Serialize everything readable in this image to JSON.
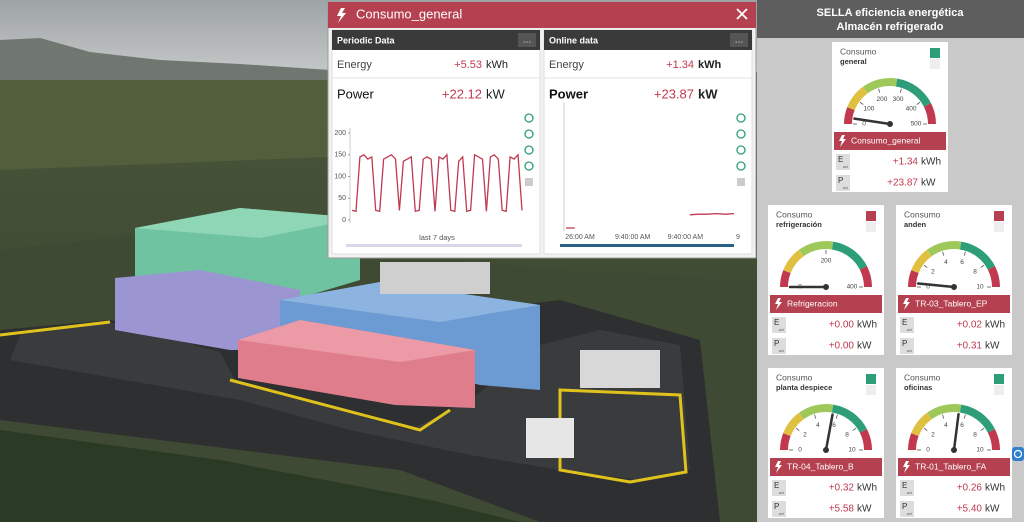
{
  "popup": {
    "title": "Consumo_general",
    "panels": [
      {
        "header": "Periodic Data",
        "energy_label": "Energy",
        "energy_value": "+5.53",
        "energy_unit": "kWh",
        "power_label": "Power",
        "power_value": "+22.12",
        "power_unit": "kW"
      },
      {
        "header": "Online data",
        "energy_label": "Energy",
        "energy_value": "+1.34",
        "energy_unit": "kWh",
        "power_label": "Power",
        "power_value": "+23.87",
        "power_unit": "kW"
      }
    ]
  },
  "chart_data": [
    {
      "type": "line",
      "color": "#c0394f",
      "ylim": [
        0,
        200
      ],
      "yticks": [
        0,
        50,
        100,
        150,
        200
      ],
      "xlabel": "last 7 days",
      "values": [
        22,
        20,
        145,
        150,
        140,
        145,
        22,
        20,
        140,
        145,
        150,
        140,
        22,
        135,
        140,
        145,
        20,
        22,
        140,
        145,
        140,
        20,
        145,
        140,
        150,
        22,
        20,
        135,
        145,
        20,
        22,
        150,
        145,
        140,
        20,
        145,
        150,
        140,
        22,
        20,
        145,
        140,
        150,
        22
      ]
    },
    {
      "type": "line",
      "color": "#c0394f",
      "ylim": [
        0,
        200
      ],
      "xtick_labels": [
        "26:00 AM",
        "9:40:00 AM",
        "9:40:00 AM",
        "9"
      ],
      "values": [
        0,
        0,
        null,
        null,
        null,
        null,
        null,
        null,
        null,
        null,
        null,
        null,
        null,
        null,
        22,
        23,
        23,
        24,
        23,
        24
      ]
    }
  ],
  "sidebar": {
    "title": "SELLA eficiencia energética",
    "subtitle": "Almacén refrigerado",
    "cards": [
      {
        "label": "Consumo",
        "sublabel": "general",
        "indicator_color": "#2e9d7a",
        "name": "Consumo_general",
        "gauge": {
          "min": 0,
          "max": 500,
          "ticks": [
            0,
            100,
            200,
            300,
            400,
            500
          ]
        },
        "energy": {
          "symbol": "E",
          "sub": "act",
          "value": "+1.34",
          "unit": "kWh"
        },
        "power": {
          "symbol": "P",
          "sub": "act",
          "value": 23.87,
          "label": "+23.87",
          "unit": "kW"
        }
      },
      {
        "label": "Consumo",
        "sublabel": "refrigeración",
        "indicator_color": "#b5404f",
        "name": "Refrigeracion",
        "gauge": {
          "min": 0,
          "max": 400,
          "ticks": [
            0,
            200,
            400
          ]
        },
        "energy": {
          "symbol": "E",
          "sub": "act",
          "value": "+0.00",
          "unit": "kWh"
        },
        "power": {
          "symbol": "P",
          "sub": "act",
          "value": 0.0,
          "label": "+0.00",
          "unit": "kW"
        }
      },
      {
        "label": "Consumo",
        "sublabel": "anden",
        "indicator_color": "#b5404f",
        "name": "TR-03_Tablero_EP",
        "gauge": {
          "min": 0,
          "max": 10,
          "ticks": [
            0,
            2,
            4,
            6,
            8,
            10
          ]
        },
        "energy": {
          "symbol": "E",
          "sub": "act",
          "value": "+0.02",
          "unit": "kWh"
        },
        "power": {
          "symbol": "P",
          "sub": "act",
          "value": 0.31,
          "label": "+0.31",
          "unit": "kW"
        }
      },
      {
        "label": "Consumo",
        "sublabel": "planta despiece",
        "indicator_color": "#2e9d7a",
        "name": "TR-04_Tablero_B",
        "gauge": {
          "min": 0,
          "max": 10,
          "ticks": [
            0,
            2,
            4,
            6,
            8,
            10
          ]
        },
        "energy": {
          "symbol": "E",
          "sub": "act",
          "value": "+0.32",
          "unit": "kWh"
        },
        "power": {
          "symbol": "P",
          "sub": "act",
          "value": 5.58,
          "label": "+5.58",
          "unit": "kW"
        }
      },
      {
        "label": "Consumo",
        "sublabel": "oficinas",
        "indicator_color": "#2e9d7a",
        "name": "TR-01_Tablero_FA",
        "gauge": {
          "min": 0,
          "max": 10,
          "ticks": [
            0,
            2,
            4,
            6,
            8,
            10
          ]
        },
        "energy": {
          "symbol": "E",
          "sub": "act",
          "value": "+0.26",
          "unit": "kWh"
        },
        "power": {
          "symbol": "P",
          "sub": "act",
          "value": 5.4,
          "label": "+5.40",
          "unit": "kW"
        }
      }
    ]
  }
}
